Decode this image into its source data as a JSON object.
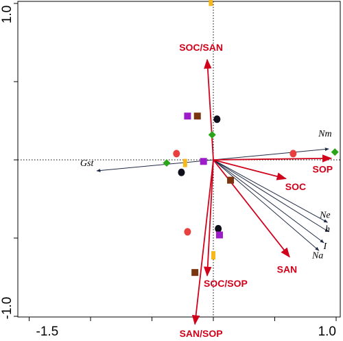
{
  "chart_data": {
    "type": "scatter",
    "subtype": "rda-biplot",
    "xlim": [
      -1.5,
      1.0
    ],
    "ylim": [
      -1.0,
      1.0
    ],
    "x_tick_labels": [
      {
        "value": -1.5,
        "label": "-1.5"
      },
      {
        "value": 1.0,
        "label": "1.0"
      }
    ],
    "y_tick_labels": [
      {
        "value": 1.0,
        "label": "1.0"
      },
      {
        "value": -1.0,
        "label": "-1.0"
      }
    ],
    "x_minor_ticks": [
      -1.5,
      -1.0,
      -0.5,
      0.0,
      0.5,
      1.0
    ],
    "y_minor_ticks": [
      -1.0,
      -0.5,
      0.0,
      0.5,
      1.0
    ],
    "zero_lines": "dotted",
    "colors": {
      "soil_arrow": "#d0021b",
      "genetic_arrow": "#1f2a44",
      "red_circle": "#e8403f",
      "black_circle": "#0f0f1a",
      "yellow_bar": "#f6b81c",
      "purple_square": "#9b1cc8",
      "brown_square": "#7a3410",
      "green_diamond": "#2aa418"
    },
    "soil_vectors": [
      {
        "label": "SOC/SAN",
        "x": -0.05,
        "y": 0.64,
        "lx": -0.1,
        "ly": 0.72
      },
      {
        "label": "SOP",
        "x": 0.96,
        "y": 0.01,
        "lx": 0.89,
        "ly": -0.06
      },
      {
        "label": "SOC",
        "x": 0.59,
        "y": -0.12,
        "lx": 0.67,
        "ly": -0.17
      },
      {
        "label": "SAN",
        "x": 0.62,
        "y": -0.62,
        "lx": 0.6,
        "ly": -0.7
      },
      {
        "label": "SOC/SOP",
        "x": -0.05,
        "y": -0.74,
        "lx": 0.1,
        "ly": -0.79
      },
      {
        "label": "SAN/SOP",
        "x": -0.15,
        "y": -1.05,
        "lx": -0.1,
        "ly": -1.11
      }
    ],
    "genetic_vectors": [
      {
        "label": "Nm",
        "x": 0.94,
        "y": 0.07,
        "lx": 0.91,
        "ly": 0.15
      },
      {
        "label": "Gst",
        "x": -0.95,
        "y": -0.07,
        "lx": -1.03,
        "ly": -0.04
      },
      {
        "label": "Ne",
        "x": 0.93,
        "y": -0.4,
        "lx": 0.91,
        "ly": -0.37
      },
      {
        "label": "h",
        "x": 0.94,
        "y": -0.46,
        "lx": 0.93,
        "ly": -0.46
      },
      {
        "label": "I",
        "x": 0.9,
        "y": -0.53,
        "lx": 0.91,
        "ly": -0.57
      },
      {
        "label": "Na",
        "x": 0.86,
        "y": -0.58,
        "lx": 0.85,
        "ly": -0.63
      }
    ],
    "points": [
      {
        "shape": "circle",
        "color": "red_circle",
        "x": -0.3,
        "y": 0.04
      },
      {
        "shape": "circle",
        "color": "red_circle",
        "x": -0.21,
        "y": -0.46
      },
      {
        "shape": "circle",
        "color": "red_circle",
        "x": 0.65,
        "y": 0.04
      },
      {
        "shape": "circle",
        "color": "black_circle",
        "x": -0.26,
        "y": -0.08
      },
      {
        "shape": "circle",
        "color": "black_circle",
        "x": 0.03,
        "y": 0.26
      },
      {
        "shape": "circle",
        "color": "black_circle",
        "x": 0.04,
        "y": -0.44
      },
      {
        "shape": "bar",
        "color": "yellow_bar",
        "x": -0.02,
        "y": 1.01
      },
      {
        "shape": "bar",
        "color": "yellow_bar",
        "x": -0.23,
        "y": -0.02
      },
      {
        "shape": "bar",
        "color": "yellow_bar",
        "x": 0.0,
        "y": -0.61
      },
      {
        "shape": "square",
        "color": "purple_square",
        "x": -0.21,
        "y": 0.28
      },
      {
        "shape": "square",
        "color": "purple_square",
        "x": -0.08,
        "y": -0.01
      },
      {
        "shape": "square",
        "color": "purple_square",
        "x": 0.05,
        "y": -0.48
      },
      {
        "shape": "square",
        "color": "brown_square",
        "x": -0.13,
        "y": 0.28
      },
      {
        "shape": "square",
        "color": "brown_square",
        "x": 0.14,
        "y": -0.13
      },
      {
        "shape": "square",
        "color": "brown_square",
        "x": -0.15,
        "y": -0.72
      },
      {
        "shape": "diamond",
        "color": "green_diamond",
        "x": -0.38,
        "y": -0.02
      },
      {
        "shape": "diamond",
        "color": "green_diamond",
        "x": -0.01,
        "y": 0.16
      },
      {
        "shape": "diamond",
        "color": "green_diamond",
        "x": 0.99,
        "y": 0.05
      }
    ]
  }
}
